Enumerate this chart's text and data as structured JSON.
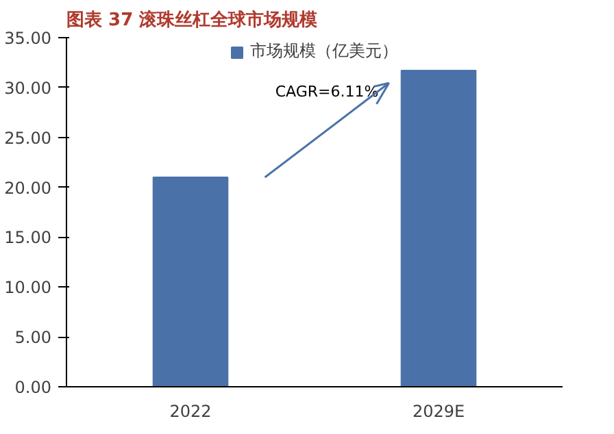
{
  "chart_data": {
    "type": "bar",
    "title": "图表 37 滚珠丝杠全球市场规模",
    "categories": [
      "2022",
      "2029E"
    ],
    "series": [
      {
        "name": "市场规模（亿美元）",
        "color": "#4a72a8",
        "values": [
          21.0,
          31.7
        ]
      }
    ],
    "ylim": [
      0,
      35
    ],
    "yticks": [
      {
        "value": 0,
        "label": "0.00"
      },
      {
        "value": 5,
        "label": "5.00"
      },
      {
        "value": 10,
        "label": "10.00"
      },
      {
        "value": 15,
        "label": "15.00"
      },
      {
        "value": 20,
        "label": "20.00"
      },
      {
        "value": 25,
        "label": "25.00"
      },
      {
        "value": 30,
        "label": "30.00"
      },
      {
        "value": 35,
        "label": "35.00"
      }
    ],
    "annotations": [
      "CAGR=6.11%"
    ],
    "grid": false,
    "legend": "top"
  }
}
